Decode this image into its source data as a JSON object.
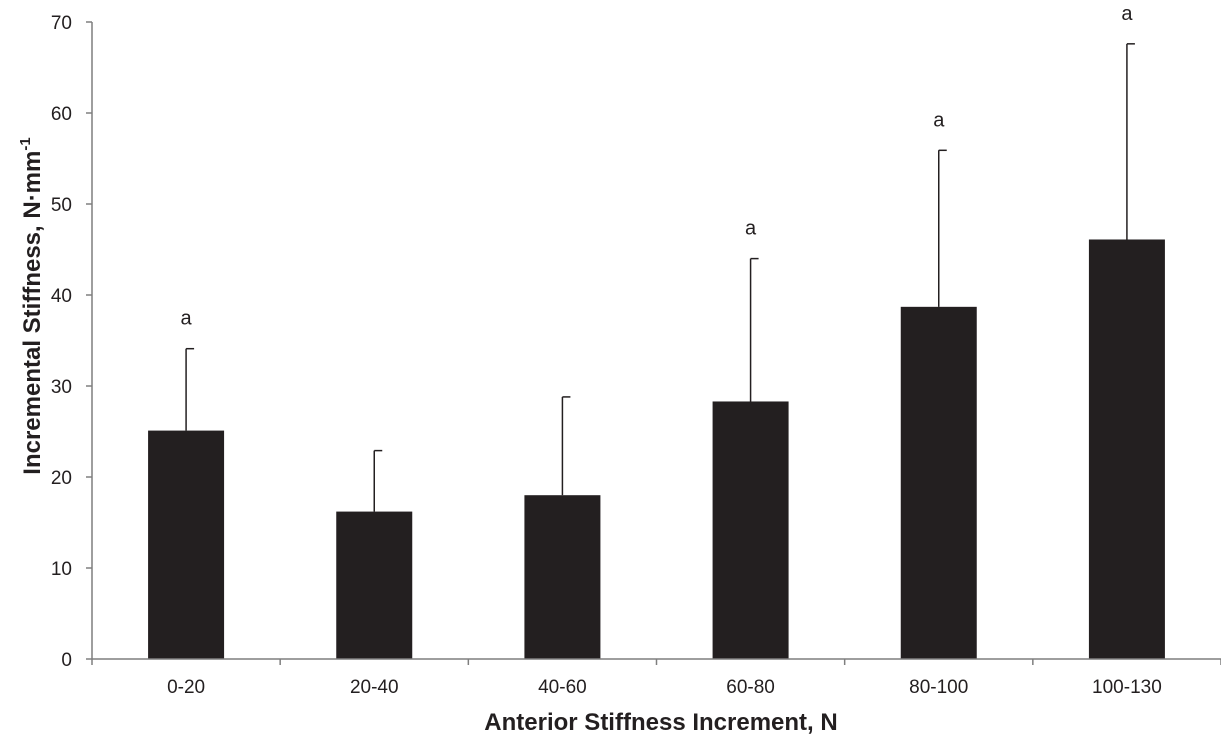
{
  "chart_data": {
    "type": "bar",
    "categories": [
      "0-20",
      "20-40",
      "40-60",
      "60-80",
      "80-100",
      "100-130"
    ],
    "values": [
      25.1,
      16.2,
      18.0,
      28.3,
      38.7,
      46.1
    ],
    "error_upper": [
      34.1,
      22.9,
      28.8,
      44.0,
      55.9,
      67.6
    ],
    "annotations": [
      "a",
      "",
      "",
      "a",
      "a",
      "a"
    ],
    "xlabel": "Anterior Stiffness Increment, N",
    "ylabel_main": "Incremental Stiffness, N·mm",
    "ylabel_sup": "-1",
    "ylim": [
      0,
      70
    ],
    "yticks": [
      0,
      10,
      20,
      30,
      40,
      50,
      60,
      70
    ],
    "grid": false,
    "bar_color": "#231f20",
    "axis_color": "#7f7f7f"
  }
}
